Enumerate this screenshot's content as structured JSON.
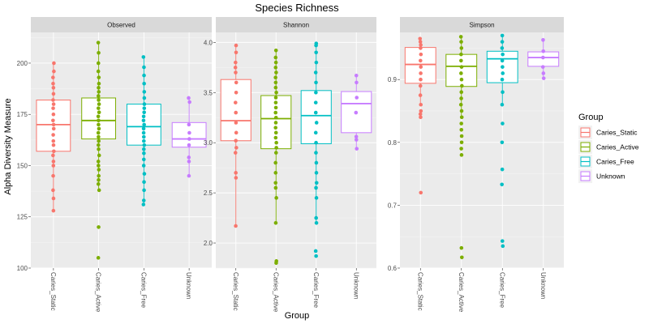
{
  "chart_data": {
    "type": "boxplot",
    "title": "Species Richness",
    "xlabel": "Group",
    "ylabel": "Alpha Diversity Measure",
    "legend": {
      "title": "Group",
      "placement": "right",
      "entries": [
        "Caries_Static",
        "Caries_Active",
        "Caries_Free",
        "Unknown"
      ]
    },
    "colors": {
      "Caries_Static": "#F8766D",
      "Caries_Active": "#7CAE00",
      "Caries_Free": "#00BFC4",
      "Unknown": "#C77CFF"
    },
    "categories": [
      "Caries_Static",
      "Caries_Active",
      "Caries_Free",
      "Unknown"
    ],
    "grid": true,
    "panels": [
      {
        "name": "Observed",
        "ylim": [
          100,
          215
        ],
        "yticks": [
          100,
          125,
          150,
          175,
          200
        ],
        "boxes": [
          {
            "group": "Caries_Static",
            "whisker_low": 128,
            "q1": 157,
            "median": 170,
            "q3": 182,
            "whisker_high": 200,
            "points": [
              128,
              134,
              138,
              145,
              150,
              152,
              155,
              157,
              160,
              162,
              165,
              168,
              170,
              172,
              175,
              178,
              180,
              182,
              185,
              188,
              190,
              193,
              196,
              200
            ]
          },
          {
            "group": "Caries_Active",
            "whisker_low": 138,
            "q1": 163,
            "median": 172,
            "q3": 183,
            "whisker_high": 210,
            "points": [
              105,
              120,
              138,
              141,
              143,
              145,
              148,
              150,
              152,
              155,
              158,
              160,
              162,
              164,
              166,
              168,
              170,
              172,
              174,
              176,
              178,
              180,
              182,
              184,
              186,
              188,
              190,
              193,
              196,
              200,
              205,
              210
            ]
          },
          {
            "group": "Caries_Free",
            "whisker_low": 131,
            "q1": 160,
            "median": 169,
            "q3": 180,
            "whisker_high": 203,
            "points": [
              131,
              133,
              138,
              142,
              146,
              150,
              153,
              156,
              158,
              160,
              162,
              164,
              166,
              168,
              170,
              172,
              174,
              176,
              178,
              180,
              183,
              186,
              190,
              194,
              198,
              203
            ]
          },
          {
            "group": "Unknown",
            "whisker_low": 145,
            "q1": 159,
            "median": 163,
            "q3": 171,
            "whisker_high": 183,
            "points": [
              145,
              152,
              154,
              160,
              163,
              166,
              170,
              181,
              183
            ]
          }
        ]
      },
      {
        "name": "Shannon",
        "ylim": [
          1.75,
          4.1
        ],
        "yticks": [
          2.0,
          2.5,
          3.0,
          3.5,
          4.0
        ],
        "boxes": [
          {
            "group": "Caries_Static",
            "whisker_low": 2.17,
            "q1": 3.02,
            "median": 3.22,
            "q3": 3.63,
            "whisker_high": 3.97,
            "points": [
              2.17,
              2.65,
              2.7,
              2.9,
              2.95,
              3.02,
              3.1,
              3.2,
              3.3,
              3.4,
              3.5,
              3.6,
              3.7,
              3.75,
              3.8,
              3.9,
              3.97
            ]
          },
          {
            "group": "Caries_Active",
            "whisker_low": 2.2,
            "q1": 2.94,
            "median": 3.24,
            "q3": 3.47,
            "whisker_high": 3.92,
            "points": [
              1.8,
              1.82,
              2.2,
              2.45,
              2.55,
              2.6,
              2.7,
              2.8,
              2.9,
              2.95,
              3.0,
              3.05,
              3.1,
              3.15,
              3.2,
              3.25,
              3.3,
              3.35,
              3.4,
              3.45,
              3.5,
              3.55,
              3.6,
              3.65,
              3.7,
              3.75,
              3.8,
              3.85,
              3.92
            ]
          },
          {
            "group": "Caries_Free",
            "whisker_low": 2.2,
            "q1": 2.99,
            "median": 3.27,
            "q3": 3.52,
            "whisker_high": 3.99,
            "points": [
              1.87,
              1.92,
              2.2,
              2.25,
              2.45,
              2.55,
              2.6,
              2.7,
              2.8,
              2.9,
              3.0,
              3.1,
              3.2,
              3.3,
              3.4,
              3.5,
              3.6,
              3.7,
              3.8,
              3.9,
              3.97,
              3.99
            ]
          },
          {
            "group": "Unknown",
            "whisker_low": 2.94,
            "q1": 3.1,
            "median": 3.39,
            "q3": 3.51,
            "whisker_high": 3.67,
            "points": [
              2.94,
              3.03,
              3.06,
              3.3,
              3.45,
              3.6,
              3.67
            ]
          }
        ]
      },
      {
        "name": "Simpson",
        "ylim": [
          0.6,
          0.975
        ],
        "yticks": [
          0.6,
          0.7,
          0.8,
          0.9
        ],
        "boxes": [
          {
            "group": "Caries_Static",
            "whisker_low": 0.86,
            "q1": 0.894,
            "median": 0.924,
            "q3": 0.951,
            "whisker_high": 0.965,
            "points": [
              0.72,
              0.84,
              0.845,
              0.85,
              0.86,
              0.875,
              0.89,
              0.9,
              0.91,
              0.92,
              0.93,
              0.94,
              0.95,
              0.955,
              0.96,
              0.965
            ]
          },
          {
            "group": "Caries_Active",
            "whisker_low": 0.84,
            "q1": 0.889,
            "median": 0.921,
            "q3": 0.94,
            "whisker_high": 0.968,
            "points": [
              0.617,
              0.632,
              0.78,
              0.79,
              0.8,
              0.81,
              0.82,
              0.83,
              0.84,
              0.85,
              0.86,
              0.87,
              0.88,
              0.89,
              0.9,
              0.91,
              0.92,
              0.93,
              0.94,
              0.95,
              0.96,
              0.968
            ]
          },
          {
            "group": "Caries_Free",
            "whisker_low": 0.86,
            "q1": 0.895,
            "median": 0.933,
            "q3": 0.945,
            "whisker_high": 0.97,
            "points": [
              0.635,
              0.643,
              0.733,
              0.757,
              0.8,
              0.83,
              0.86,
              0.88,
              0.9,
              0.91,
              0.92,
              0.93,
              0.94,
              0.95,
              0.96,
              0.97
            ]
          },
          {
            "group": "Unknown",
            "whisker_low": 0.902,
            "q1": 0.921,
            "median": 0.935,
            "q3": 0.944,
            "whisker_high": 0.963,
            "points": [
              0.902,
              0.91,
              0.92,
              0.935,
              0.945,
              0.963
            ]
          }
        ]
      }
    ]
  }
}
